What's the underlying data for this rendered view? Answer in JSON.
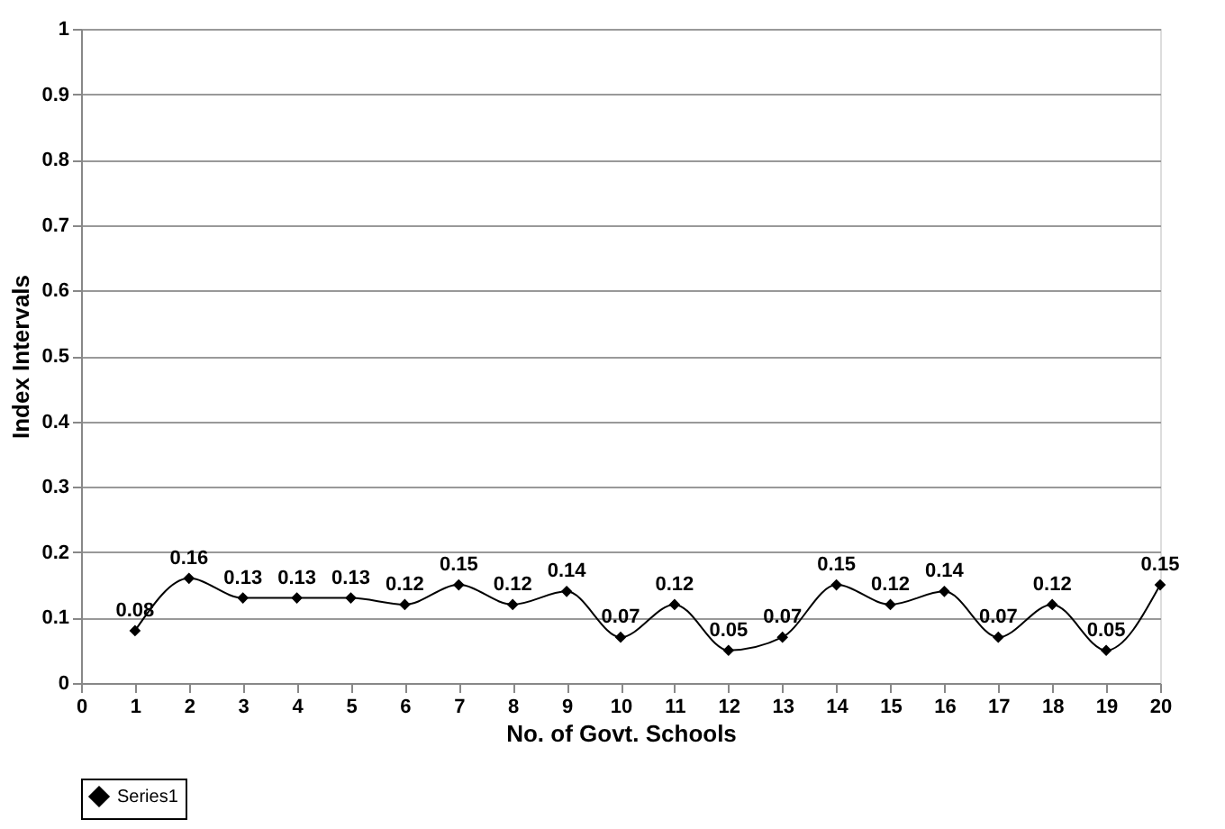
{
  "chart_data": {
    "type": "line",
    "xlabel": "No. of Govt. Schools",
    "ylabel": "Index Intervals",
    "x": [
      1,
      2,
      3,
      4,
      5,
      6,
      7,
      8,
      9,
      10,
      11,
      12,
      13,
      14,
      15,
      16,
      17,
      18,
      19,
      20
    ],
    "series": [
      {
        "name": "Series1",
        "color": "#000000",
        "values": [
          0.08,
          0.16,
          0.13,
          0.13,
          0.13,
          0.12,
          0.15,
          0.12,
          0.14,
          0.07,
          0.12,
          0.05,
          0.07,
          0.15,
          0.12,
          0.14,
          0.07,
          0.12,
          0.05,
          0.15
        ]
      }
    ],
    "xlim": [
      0,
      20
    ],
    "xticks": [
      0,
      1,
      2,
      3,
      4,
      5,
      6,
      7,
      8,
      9,
      10,
      11,
      12,
      13,
      14,
      15,
      16,
      17,
      18,
      19,
      20
    ],
    "ylim": [
      0,
      1
    ],
    "yticks": [
      0,
      0.1,
      0.2,
      0.3,
      0.4,
      0.5,
      0.6,
      0.7,
      0.8,
      0.9,
      1
    ],
    "grid": "y",
    "legend": "bottom",
    "marker": "diamond",
    "line_style": "solid",
    "data_labels": true
  }
}
